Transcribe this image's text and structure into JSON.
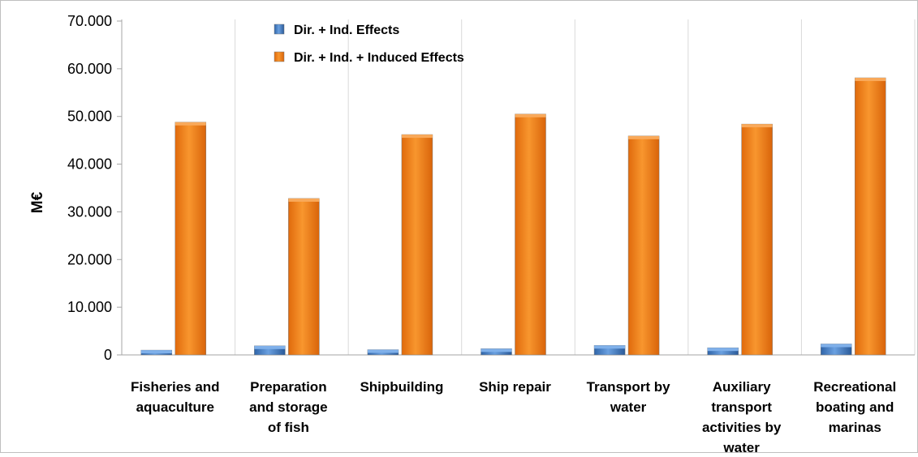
{
  "chart_data": {
    "type": "bar",
    "ylabel": "M€",
    "ylim": [
      0,
      70000
    ],
    "y_ticks": [
      {
        "value": 0,
        "label": "0"
      },
      {
        "value": 10000,
        "label": "10.000"
      },
      {
        "value": 20000,
        "label": "20.000"
      },
      {
        "value": 30000,
        "label": "30.000"
      },
      {
        "value": 40000,
        "label": "40.000"
      },
      {
        "value": 50000,
        "label": "50.000"
      },
      {
        "value": 60000,
        "label": "60.000"
      },
      {
        "value": 70000,
        "label": "70.000"
      }
    ],
    "categories": [
      [
        "Fisheries and",
        "aquaculture"
      ],
      [
        "Preparation",
        "and storage",
        "of fish"
      ],
      [
        "Shipbuilding"
      ],
      [
        "Ship repair"
      ],
      [
        "Transport by",
        "water"
      ],
      [
        "Auxiliary",
        "transport",
        "activities by",
        "water"
      ],
      [
        "Recreational",
        "boating and",
        "marinas"
      ]
    ],
    "series": [
      {
        "name": "Dir. + Ind. Effects",
        "color": "#4a7fc1",
        "values": [
          1000,
          1900,
          1100,
          1300,
          2000,
          1500,
          2300
        ]
      },
      {
        "name": "Dir. + Ind. + Induced Effects",
        "color": "#f07f1c",
        "values": [
          48800,
          32800,
          46200,
          50500,
          45900,
          48400,
          58100
        ]
      }
    ],
    "legend_position": "top-left",
    "grid": "vertical category separators"
  }
}
